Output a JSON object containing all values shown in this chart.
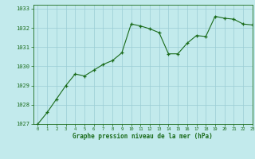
{
  "x": [
    0,
    1,
    2,
    3,
    4,
    5,
    6,
    7,
    8,
    9,
    10,
    11,
    12,
    13,
    14,
    15,
    16,
    17,
    18,
    19,
    20,
    21,
    22,
    23
  ],
  "y": [
    1027.0,
    1027.6,
    1028.3,
    1029.0,
    1029.6,
    1029.5,
    1029.8,
    1030.1,
    1030.3,
    1030.7,
    1032.2,
    1032.1,
    1031.95,
    1031.75,
    1030.65,
    1030.65,
    1031.2,
    1031.6,
    1031.55,
    1032.6,
    1032.5,
    1032.45,
    1032.2,
    1032.15
  ],
  "xlim": [
    -0.5,
    23
  ],
  "ylim": [
    1027,
    1033.2
  ],
  "yticks": [
    1027,
    1028,
    1029,
    1030,
    1031,
    1032,
    1033
  ],
  "xticks": [
    0,
    1,
    2,
    3,
    4,
    5,
    6,
    7,
    8,
    9,
    10,
    11,
    12,
    13,
    14,
    15,
    16,
    17,
    18,
    19,
    20,
    21,
    22,
    23
  ],
  "line_color": "#1a6b1a",
  "marker_color": "#1a6b1a",
  "bg_color": "#c2eaec",
  "grid_color": "#9acdd4",
  "xlabel": "Graphe pression niveau de la mer (hPa)",
  "xlabel_color": "#1a6b1a",
  "tick_color": "#1a6b1a",
  "border_color": "#1a6b1a"
}
